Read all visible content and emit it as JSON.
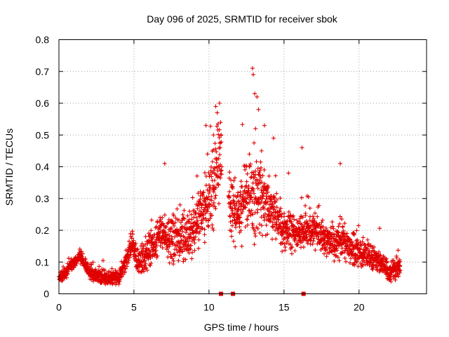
{
  "chart_data": {
    "type": "scatter",
    "title": "Day 096 of 2025, SRMTID for receiver sbok",
    "xlabel": "GPS time / hours",
    "ylabel": "SRMTID / TECUs",
    "xlim": [
      0,
      24.5
    ],
    "ylim": [
      0,
      0.8
    ],
    "xticks": [
      0,
      5,
      10,
      15,
      20
    ],
    "yticks": [
      0,
      0.1,
      0.2,
      0.3,
      0.4,
      0.5,
      0.6,
      0.7,
      0.8
    ],
    "ytick_labels": [
      "0",
      "0.1",
      "0.2",
      "0.3",
      "0.4",
      "0.5",
      "0.6",
      "0.7",
      "0.8"
    ],
    "grid": true,
    "marker": "+",
    "color": "#e00000",
    "series": [
      {
        "name": "SRMTID",
        "trend": [
          [
            0.0,
            0.05
          ],
          [
            0.5,
            0.07
          ],
          [
            1.0,
            0.1
          ],
          [
            1.4,
            0.12
          ],
          [
            2.0,
            0.07
          ],
          [
            3.0,
            0.05
          ],
          [
            4.0,
            0.05
          ],
          [
            4.5,
            0.1
          ],
          [
            4.9,
            0.16
          ],
          [
            5.2,
            0.1
          ],
          [
            6.0,
            0.13
          ],
          [
            6.8,
            0.2
          ],
          [
            7.2,
            0.17
          ],
          [
            8.0,
            0.18
          ],
          [
            8.8,
            0.18
          ],
          [
            9.5,
            0.25
          ],
          [
            10.2,
            0.32
          ],
          [
            10.6,
            0.4
          ],
          [
            10.8,
            0.42
          ],
          [
            11.5,
            0.26
          ],
          [
            12.0,
            0.26
          ],
          [
            12.7,
            0.32
          ],
          [
            13.3,
            0.32
          ],
          [
            14.0,
            0.28
          ],
          [
            15.0,
            0.2
          ],
          [
            16.0,
            0.19
          ],
          [
            17.0,
            0.2
          ],
          [
            18.0,
            0.16
          ],
          [
            19.0,
            0.17
          ],
          [
            19.5,
            0.14
          ],
          [
            20.5,
            0.12
          ],
          [
            21.5,
            0.1
          ],
          [
            22.0,
            0.07
          ],
          [
            22.7,
            0.08
          ]
        ],
        "spread": [
          [
            0.0,
            0.015
          ],
          [
            4.0,
            0.02
          ],
          [
            6.0,
            0.05
          ],
          [
            9.0,
            0.07
          ],
          [
            10.5,
            0.12
          ],
          [
            12.0,
            0.09
          ],
          [
            13.0,
            0.12
          ],
          [
            14.5,
            0.06
          ],
          [
            17.0,
            0.05
          ],
          [
            20.0,
            0.04
          ],
          [
            22.7,
            0.025
          ]
        ],
        "peaks": [
          [
            10.45,
            0.59
          ],
          [
            10.7,
            0.6
          ],
          [
            10.55,
            0.57
          ],
          [
            12.9,
            0.71
          ],
          [
            12.95,
            0.69
          ],
          [
            13.05,
            0.63
          ],
          [
            13.2,
            0.62
          ],
          [
            13.3,
            0.58
          ],
          [
            13.1,
            0.52
          ],
          [
            13.7,
            0.53
          ],
          [
            9.8,
            0.53
          ],
          [
            14.3,
            0.49
          ],
          [
            16.2,
            0.46
          ],
          [
            7.05,
            0.41
          ],
          [
            18.75,
            0.41
          ],
          [
            9.9,
            0.44
          ],
          [
            13.5,
            0.45
          ],
          [
            10.3,
            0.5
          ],
          [
            12.5,
            0.4
          ],
          [
            15.3,
            0.38
          ]
        ]
      }
    ],
    "gap_markers": [
      10.8,
      11.6,
      16.3
    ]
  }
}
